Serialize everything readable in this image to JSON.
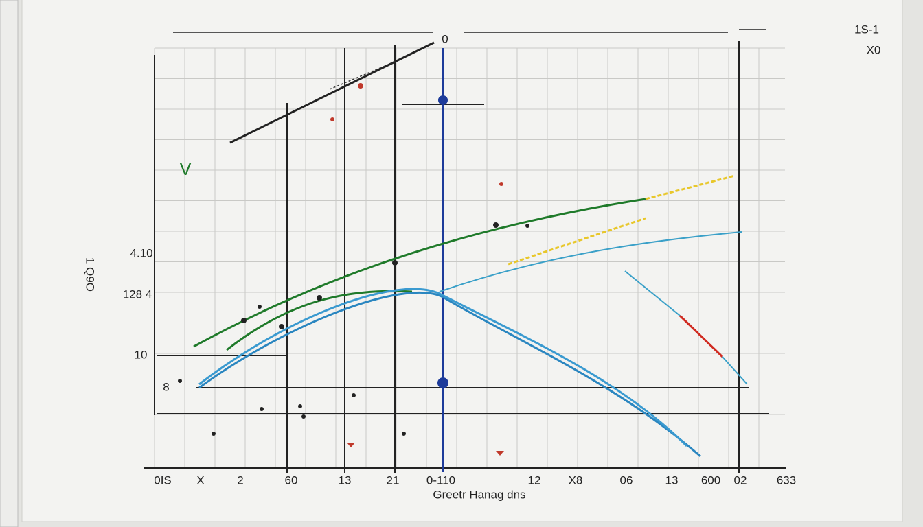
{
  "top_label": "0",
  "corner_labels": [
    "1S-1",
    "X0"
  ],
  "green_mark": "V",
  "y_axis_label": "1 Q9O",
  "y_labels": [
    "4.10",
    "128 4",
    "10",
    "8"
  ],
  "x_labels": [
    "0IS",
    "X",
    "2",
    "60",
    "13",
    "21",
    "0-110",
    "12",
    "X8",
    "06",
    "13",
    "600",
    "02",
    "633"
  ],
  "x_title": "Greetr Hanag dns"
}
